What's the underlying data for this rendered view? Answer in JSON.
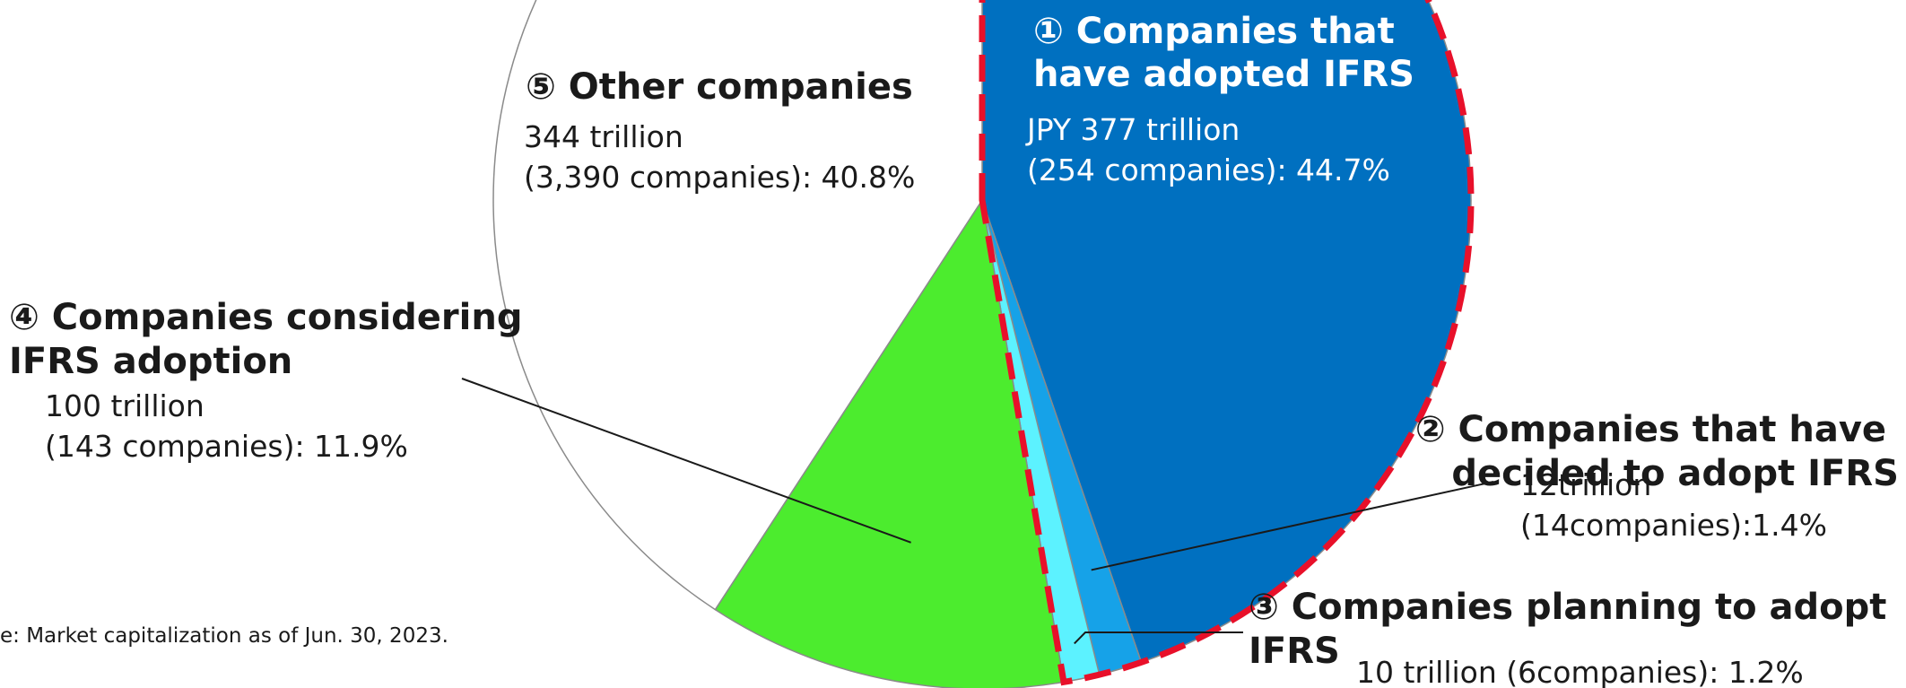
{
  "chart_data": {
    "type": "pie",
    "title": "",
    "unit": "trillion",
    "highlight_group": [
      "adopted",
      "decided",
      "planning"
    ],
    "slices": [
      {
        "id": "adopted",
        "title_lines": [
          "① Companies that",
          "have  adopted IFRS"
        ],
        "value_lines": [
          "JPY 377 trillion",
          "(254 companies): 44.7%"
        ],
        "value": 377,
        "companies": 254,
        "percent": 44.7,
        "color": "#0070C0"
      },
      {
        "id": "decided",
        "title_lines": [
          "② Companies that have",
          "decided to adopt IFRS"
        ],
        "value_lines": [
          "12trillion",
          "(14companies):1.4%"
        ],
        "value": 12,
        "companies": 14,
        "percent": 1.4,
        "color": "#16A2E8"
      },
      {
        "id": "planning",
        "title_lines": [
          "③ Companies planning to adopt",
          "IFRS"
        ],
        "value_lines": [
          "10 trillion (6companies): 1.2%"
        ],
        "value": 10,
        "companies": 6,
        "percent": 1.2,
        "color": "#5CF2FF"
      },
      {
        "id": "considering",
        "title_lines": [
          "④ Companies considering",
          "IFRS adoption"
        ],
        "value_lines": [
          "100 trillion",
          "(143 companies): 11.9%"
        ],
        "value": 100,
        "companies": 143,
        "percent": 11.9,
        "color": "#4CEC2E"
      },
      {
        "id": "other",
        "title_lines": [
          "⑤ Other companies"
        ],
        "value_lines": [
          "344 trillion",
          "(3,390 companies): 40.8%"
        ],
        "value": 344,
        "companies": 3390,
        "percent": 40.8,
        "color": "#FFFFFF"
      }
    ],
    "note": "e: Market capitalization as of Jun. 30, 2023."
  }
}
